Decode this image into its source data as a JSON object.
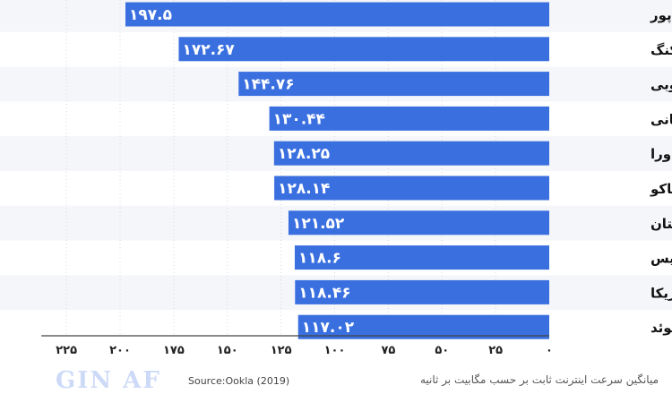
{
  "chart_data": {
    "type": "bar",
    "orientation": "horizontal",
    "categories": [
      "سنگاپور",
      "هنگ کنگ",
      "کره‌ی جنوبی",
      "رومانی",
      "آندورا",
      "موناکو",
      "مجارستان",
      "سوئیس",
      "آمریکا",
      "سوئد"
    ],
    "values": [
      197.5,
      172.67,
      144.76,
      130.44,
      128.25,
      128.14,
      121.52,
      118.6,
      118.46,
      117.02
    ],
    "value_labels": [
      "۱۹۷.۵",
      "۱۷۲.۶۷",
      "۱۴۴.۷۶",
      "۱۳۰.۴۴",
      "۱۲۸.۲۵",
      "۱۲۸.۱۴",
      "۱۲۱.۵۲",
      "۱۱۸.۶",
      "۱۱۸.۴۶",
      "۱۱۷.۰۲"
    ],
    "xlim": [
      0,
      240
    ],
    "x_reversed": true,
    "ticks": [
      0,
      25,
      50,
      75,
      100,
      125,
      150,
      175,
      200,
      225
    ],
    "tick_labels": [
      "۰",
      "۲۵",
      "۵۰",
      "۷۵",
      "۱۰۰",
      "۱۲۵",
      "۱۵۰",
      "۱۷۵",
      "۲۰۰",
      "۲۲۵"
    ],
    "title": "میانگین سرعت اینترنت ثابت بر حسب مگابیت بر ثانیه",
    "source": "Source:Ookla (2019)",
    "bar_color": "#3a6fe0"
  },
  "footer": {
    "title": "میانگین سرعت اینترنت ثابت بر حسب مگابیت بر ثانیه",
    "source": "Source:Ookla (2019)"
  },
  "logo": {
    "text": "GIN AF"
  }
}
